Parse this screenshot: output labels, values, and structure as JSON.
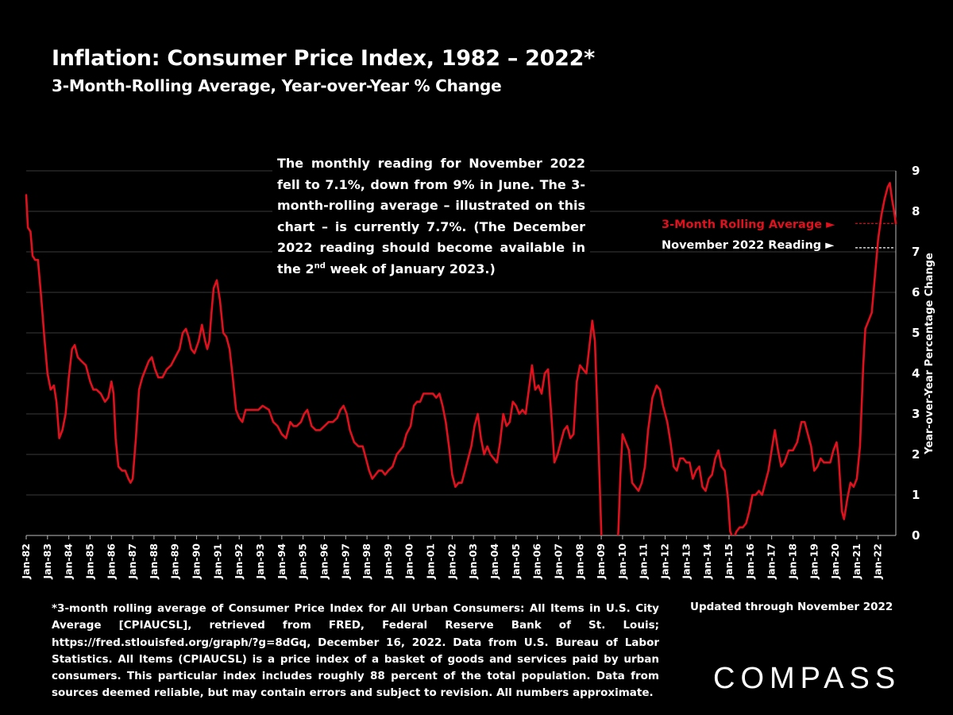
{
  "title": "Inflation: Consumer Price Index, 1982 – 2022*",
  "subtitle": "3-Month-Rolling Average, Year-over-Year % Change",
  "annotation": {
    "part1": "The monthly reading for November 2022 fell to 7.1%, down from 9% in June. The 3-month-rolling average – illustrated on this chart – is currently 7.7%. (The December 2022 reading should become available in the 2",
    "superscript": "nd",
    "part2": " week of January 2023.)"
  },
  "legend": {
    "rolling_average": "3-Month Rolling Average ►",
    "november_reading": "November 2022 Reading ►"
  },
  "footnote": "*3-month rolling average of Consumer Price Index for All Urban Consumers: All Items in U.S. City Average [CPIAUCSL], retrieved from FRED, Federal Reserve Bank of St. Louis; https://fred.stlouisfed.org/graph/?g=8dGq, December 16, 2022. Data from U.S. Bureau of Labor Statistics. All Items (CPIAUCSL) is a price index of a basket of goods and services paid by urban consumers. This particular index includes roughly 88 percent of the total population. Data from sources deemed reliable, but may contain errors and subject to revision. All numbers approximate.",
  "updated": "Updated through November 2022",
  "brand": "COMPASS",
  "colors": {
    "background": "#000000",
    "line": "#e0101c",
    "text": "#ffffff",
    "grid": "#3a3a3a"
  },
  "chart_data": {
    "type": "line",
    "title": "Inflation: Consumer Price Index, 1982 – 2022*",
    "subtitle": "3-Month-Rolling Average, Year-over-Year % Change",
    "ylabel": "Year-over-Year Percentage Change",
    "xlabel": "",
    "ylim": [
      0,
      9
    ],
    "yticks": [
      0,
      1,
      2,
      3,
      4,
      5,
      6,
      7,
      8,
      9
    ],
    "y_axis_side": "right",
    "grid": true,
    "categories": [
      "Jan-82",
      "Jan-83",
      "Jan-84",
      "Jan-85",
      "Jan-86",
      "Jan-87",
      "Jan-88",
      "Jan-89",
      "Jan-90",
      "Jan-91",
      "Jan-92",
      "Jan-93",
      "Jan-94",
      "Jan-95",
      "Jan-96",
      "Jan-97",
      "Jan-98",
      "Jan-99",
      "Jan-00",
      "Jan-01",
      "Jan-02",
      "Jan-03",
      "Jan-04",
      "Jan-05",
      "Jan-06",
      "Jan-07",
      "Jan-08",
      "Jan-09",
      "Jan-10",
      "Jan-11",
      "Jan-12",
      "Jan-13",
      "Jan-14",
      "Jan-15",
      "Jan-16",
      "Jan-17",
      "Jan-18",
      "Jan-19",
      "Jan-20",
      "Jan-21",
      "Jan-22"
    ],
    "x_range": [
      1982.0,
      2022.83
    ],
    "series": [
      {
        "points": [
          [
            1982.0,
            8.4
          ],
          [
            1982.08,
            7.6
          ],
          [
            1982.2,
            7.5
          ],
          [
            1982.3,
            6.9
          ],
          [
            1982.42,
            6.8
          ],
          [
            1982.55,
            6.8
          ],
          [
            1982.7,
            5.9
          ],
          [
            1982.85,
            4.9
          ],
          [
            1983.0,
            4.0
          ],
          [
            1983.15,
            3.6
          ],
          [
            1983.3,
            3.7
          ],
          [
            1983.42,
            3.3
          ],
          [
            1983.55,
            2.4
          ],
          [
            1983.7,
            2.6
          ],
          [
            1983.85,
            3.0
          ],
          [
            1984.0,
            3.9
          ],
          [
            1984.15,
            4.6
          ],
          [
            1984.28,
            4.7
          ],
          [
            1984.42,
            4.4
          ],
          [
            1984.6,
            4.3
          ],
          [
            1984.8,
            4.2
          ],
          [
            1985.0,
            3.8
          ],
          [
            1985.15,
            3.6
          ],
          [
            1985.3,
            3.6
          ],
          [
            1985.5,
            3.5
          ],
          [
            1985.7,
            3.3
          ],
          [
            1985.85,
            3.4
          ],
          [
            1986.0,
            3.8
          ],
          [
            1986.1,
            3.5
          ],
          [
            1986.2,
            2.4
          ],
          [
            1986.33,
            1.7
          ],
          [
            1986.5,
            1.6
          ],
          [
            1986.65,
            1.6
          ],
          [
            1986.8,
            1.4
          ],
          [
            1986.9,
            1.3
          ],
          [
            1987.0,
            1.4
          ],
          [
            1987.15,
            2.4
          ],
          [
            1987.3,
            3.6
          ],
          [
            1987.45,
            3.9
          ],
          [
            1987.6,
            4.1
          ],
          [
            1987.75,
            4.3
          ],
          [
            1987.9,
            4.4
          ],
          [
            1988.05,
            4.1
          ],
          [
            1988.2,
            3.9
          ],
          [
            1988.4,
            3.9
          ],
          [
            1988.6,
            4.1
          ],
          [
            1988.8,
            4.2
          ],
          [
            1989.0,
            4.4
          ],
          [
            1989.2,
            4.6
          ],
          [
            1989.35,
            5.0
          ],
          [
            1989.5,
            5.1
          ],
          [
            1989.62,
            4.9
          ],
          [
            1989.75,
            4.6
          ],
          [
            1989.9,
            4.5
          ],
          [
            1990.1,
            4.8
          ],
          [
            1990.25,
            5.2
          ],
          [
            1990.4,
            4.8
          ],
          [
            1990.5,
            4.6
          ],
          [
            1990.6,
            4.8
          ],
          [
            1990.7,
            5.5
          ],
          [
            1990.8,
            6.1
          ],
          [
            1990.95,
            6.3
          ],
          [
            1991.1,
            5.8
          ],
          [
            1991.25,
            5.0
          ],
          [
            1991.4,
            4.9
          ],
          [
            1991.55,
            4.6
          ],
          [
            1991.7,
            3.9
          ],
          [
            1991.85,
            3.1
          ],
          [
            1992.0,
            2.9
          ],
          [
            1992.15,
            2.8
          ],
          [
            1992.3,
            3.1
          ],
          [
            1992.5,
            3.1
          ],
          [
            1992.7,
            3.1
          ],
          [
            1992.9,
            3.1
          ],
          [
            1993.1,
            3.2
          ],
          [
            1993.4,
            3.1
          ],
          [
            1993.6,
            2.8
          ],
          [
            1993.8,
            2.7
          ],
          [
            1994.0,
            2.5
          ],
          [
            1994.2,
            2.4
          ],
          [
            1994.4,
            2.8
          ],
          [
            1994.55,
            2.7
          ],
          [
            1994.7,
            2.7
          ],
          [
            1994.9,
            2.8
          ],
          [
            1995.05,
            3.0
          ],
          [
            1995.2,
            3.1
          ],
          [
            1995.4,
            2.7
          ],
          [
            1995.6,
            2.6
          ],
          [
            1995.8,
            2.6
          ],
          [
            1996.0,
            2.7
          ],
          [
            1996.2,
            2.8
          ],
          [
            1996.4,
            2.8
          ],
          [
            1996.6,
            2.9
          ],
          [
            1996.75,
            3.1
          ],
          [
            1996.9,
            3.2
          ],
          [
            1997.05,
            3.0
          ],
          [
            1997.2,
            2.6
          ],
          [
            1997.4,
            2.3
          ],
          [
            1997.6,
            2.2
          ],
          [
            1997.8,
            2.2
          ],
          [
            1997.95,
            1.9
          ],
          [
            1998.1,
            1.6
          ],
          [
            1998.25,
            1.4
          ],
          [
            1998.4,
            1.5
          ],
          [
            1998.55,
            1.6
          ],
          [
            1998.7,
            1.6
          ],
          [
            1998.85,
            1.5
          ],
          [
            1999.0,
            1.6
          ],
          [
            1999.2,
            1.7
          ],
          [
            1999.4,
            2.0
          ],
          [
            1999.55,
            2.1
          ],
          [
            1999.7,
            2.2
          ],
          [
            1999.85,
            2.5
          ],
          [
            2000.05,
            2.7
          ],
          [
            2000.2,
            3.2
          ],
          [
            2000.35,
            3.3
          ],
          [
            2000.5,
            3.3
          ],
          [
            2000.65,
            3.5
          ],
          [
            2000.8,
            3.5
          ],
          [
            2000.95,
            3.5
          ],
          [
            2001.1,
            3.5
          ],
          [
            2001.25,
            3.4
          ],
          [
            2001.4,
            3.5
          ],
          [
            2001.55,
            3.2
          ],
          [
            2001.7,
            2.8
          ],
          [
            2001.85,
            2.2
          ],
          [
            2002.0,
            1.5
          ],
          [
            2002.15,
            1.2
          ],
          [
            2002.3,
            1.3
          ],
          [
            2002.45,
            1.3
          ],
          [
            2002.6,
            1.6
          ],
          [
            2002.75,
            1.9
          ],
          [
            2002.9,
            2.2
          ],
          [
            2003.05,
            2.7
          ],
          [
            2003.2,
            3.0
          ],
          [
            2003.35,
            2.4
          ],
          [
            2003.5,
            2.0
          ],
          [
            2003.65,
            2.2
          ],
          [
            2003.8,
            2.0
          ],
          [
            2003.95,
            1.9
          ],
          [
            2004.1,
            1.8
          ],
          [
            2004.25,
            2.3
          ],
          [
            2004.4,
            3.0
          ],
          [
            2004.55,
            2.7
          ],
          [
            2004.7,
            2.8
          ],
          [
            2004.85,
            3.3
          ],
          [
            2005.0,
            3.2
          ],
          [
            2005.15,
            3.0
          ],
          [
            2005.3,
            3.1
          ],
          [
            2005.45,
            3.0
          ],
          [
            2005.6,
            3.6
          ],
          [
            2005.75,
            4.2
          ],
          [
            2005.9,
            3.6
          ],
          [
            2006.05,
            3.7
          ],
          [
            2006.2,
            3.5
          ],
          [
            2006.35,
            4.0
          ],
          [
            2006.5,
            4.1
          ],
          [
            2006.65,
            3.0
          ],
          [
            2006.8,
            1.8
          ],
          [
            2006.95,
            2.0
          ],
          [
            2007.1,
            2.3
          ],
          [
            2007.25,
            2.6
          ],
          [
            2007.4,
            2.7
          ],
          [
            2007.55,
            2.4
          ],
          [
            2007.7,
            2.5
          ],
          [
            2007.85,
            3.8
          ],
          [
            2008.0,
            4.2
          ],
          [
            2008.15,
            4.1
          ],
          [
            2008.3,
            4.0
          ],
          [
            2008.45,
            4.7
          ],
          [
            2008.58,
            5.3
          ],
          [
            2008.7,
            4.8
          ],
          [
            2008.82,
            3.0
          ],
          [
            2008.95,
            0.9
          ],
          [
            2009.0,
            0.1
          ],
          [
            2009.05,
            -0.6
          ],
          [
            2009.7,
            -0.6
          ],
          [
            2009.8,
            0.1
          ],
          [
            2009.9,
            1.5
          ],
          [
            2010.0,
            2.5
          ],
          [
            2010.15,
            2.3
          ],
          [
            2010.3,
            2.1
          ],
          [
            2010.45,
            1.3
          ],
          [
            2010.6,
            1.2
          ],
          [
            2010.75,
            1.1
          ],
          [
            2010.9,
            1.3
          ],
          [
            2011.05,
            1.7
          ],
          [
            2011.2,
            2.6
          ],
          [
            2011.4,
            3.4
          ],
          [
            2011.6,
            3.7
          ],
          [
            2011.75,
            3.6
          ],
          [
            2011.9,
            3.2
          ],
          [
            2012.1,
            2.8
          ],
          [
            2012.25,
            2.3
          ],
          [
            2012.4,
            1.7
          ],
          [
            2012.55,
            1.6
          ],
          [
            2012.7,
            1.9
          ],
          [
            2012.85,
            1.9
          ],
          [
            2013.0,
            1.8
          ],
          [
            2013.15,
            1.8
          ],
          [
            2013.3,
            1.4
          ],
          [
            2013.45,
            1.6
          ],
          [
            2013.6,
            1.7
          ],
          [
            2013.75,
            1.2
          ],
          [
            2013.9,
            1.1
          ],
          [
            2014.05,
            1.4
          ],
          [
            2014.2,
            1.5
          ],
          [
            2014.35,
            1.9
          ],
          [
            2014.5,
            2.1
          ],
          [
            2014.65,
            1.7
          ],
          [
            2014.8,
            1.6
          ],
          [
            2014.95,
            0.9
          ],
          [
            2015.05,
            0.1
          ],
          [
            2015.2,
            -0.1
          ],
          [
            2015.35,
            0.1
          ],
          [
            2015.5,
            0.2
          ],
          [
            2015.65,
            0.2
          ],
          [
            2015.8,
            0.3
          ],
          [
            2015.95,
            0.6
          ],
          [
            2016.1,
            1.0
          ],
          [
            2016.25,
            1.0
          ],
          [
            2016.4,
            1.1
          ],
          [
            2016.55,
            1.0
          ],
          [
            2016.7,
            1.3
          ],
          [
            2016.85,
            1.6
          ],
          [
            2017.0,
            2.1
          ],
          [
            2017.15,
            2.6
          ],
          [
            2017.3,
            2.1
          ],
          [
            2017.45,
            1.7
          ],
          [
            2017.6,
            1.8
          ],
          [
            2017.8,
            2.1
          ],
          [
            2018.0,
            2.1
          ],
          [
            2018.2,
            2.3
          ],
          [
            2018.4,
            2.8
          ],
          [
            2018.55,
            2.8
          ],
          [
            2018.7,
            2.5
          ],
          [
            2018.85,
            2.2
          ],
          [
            2019.0,
            1.6
          ],
          [
            2019.15,
            1.7
          ],
          [
            2019.3,
            1.9
          ],
          [
            2019.45,
            1.8
          ],
          [
            2019.6,
            1.8
          ],
          [
            2019.75,
            1.8
          ],
          [
            2019.9,
            2.1
          ],
          [
            2020.05,
            2.3
          ],
          [
            2020.15,
            1.9
          ],
          [
            2020.3,
            0.6
          ],
          [
            2020.4,
            0.4
          ],
          [
            2020.55,
            0.9
          ],
          [
            2020.7,
            1.3
          ],
          [
            2020.85,
            1.2
          ],
          [
            2021.0,
            1.4
          ],
          [
            2021.15,
            2.2
          ],
          [
            2021.3,
            4.2
          ],
          [
            2021.4,
            5.1
          ],
          [
            2021.55,
            5.3
          ],
          [
            2021.7,
            5.5
          ],
          [
            2021.85,
            6.4
          ],
          [
            2022.0,
            7.3
          ],
          [
            2022.15,
            7.9
          ],
          [
            2022.3,
            8.3
          ],
          [
            2022.45,
            8.6
          ],
          [
            2022.55,
            8.7
          ],
          [
            2022.65,
            8.3
          ],
          [
            2022.75,
            8.0
          ],
          [
            2022.83,
            7.7
          ]
        ]
      }
    ],
    "reference_lines": [
      {
        "label": "3-Month Rolling Average",
        "y": 7.7
      },
      {
        "label": "November 2022 Reading",
        "y": 7.1
      }
    ]
  }
}
